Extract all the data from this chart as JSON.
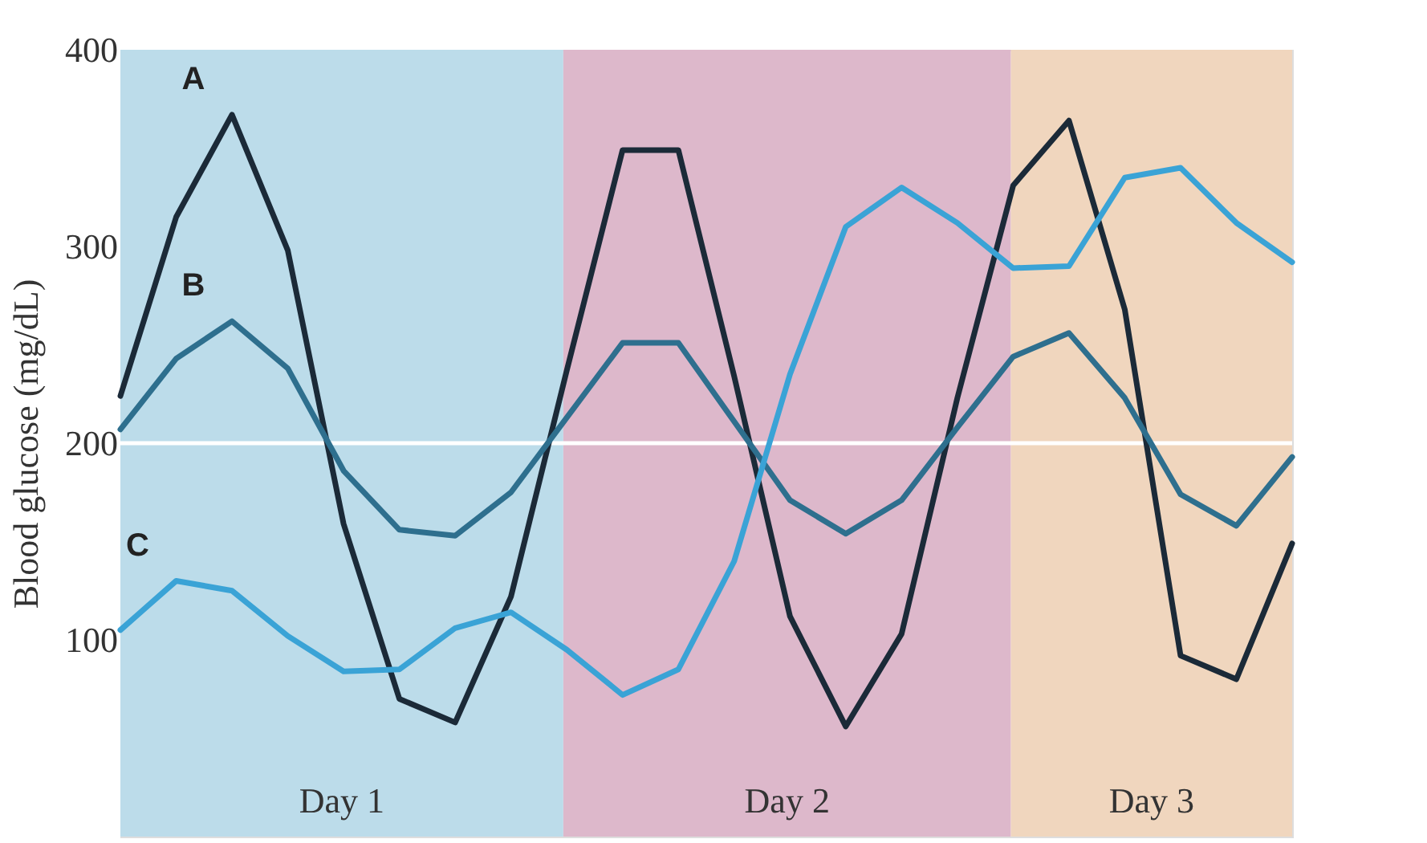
{
  "chart_data": {
    "type": "line",
    "ylabel": "Blood glucose (mg/dL)",
    "categories": [
      null,
      null,
      null,
      null,
      null,
      null,
      null,
      null,
      null,
      null,
      null,
      null,
      null,
      null,
      null,
      null,
      null,
      null,
      null,
      null,
      null,
      null
    ],
    "ylim": [
      0,
      400
    ],
    "yticks": [
      100,
      200,
      300,
      400
    ],
    "tick_labels": "y",
    "grid": false,
    "legend": false,
    "marker": "none",
    "line_style": "solid",
    "annotations": [
      "Day 1",
      "Day 2",
      "Day 3"
    ],
    "ref_lines": [
      {
        "axis": "y",
        "value": 200,
        "color": "#ffffff"
      }
    ],
    "series": [
      {
        "name": "A",
        "color": "#1b2a38",
        "values": [
          224,
          315,
          367,
          298,
          159,
          70,
          58,
          122,
          237,
          349,
          349,
          234,
          112,
          56,
          103,
          223,
          331,
          364,
          268,
          92,
          80,
          149
        ]
      },
      {
        "name": "B",
        "color": "#2e6f8e",
        "values": [
          207,
          243,
          262,
          238,
          186,
          156,
          153,
          175,
          213,
          251,
          251,
          211,
          171,
          154,
          171,
          208,
          244,
          256,
          223,
          174,
          158,
          193
        ]
      },
      {
        "name": "C",
        "color": "#3aa3d6",
        "values": [
          105,
          130,
          125,
          102,
          84,
          85,
          106,
          114,
          95,
          72,
          85,
          140,
          235,
          310,
          330,
          312,
          289,
          290,
          335,
          340,
          312,
          292
        ]
      }
    ]
  }
}
